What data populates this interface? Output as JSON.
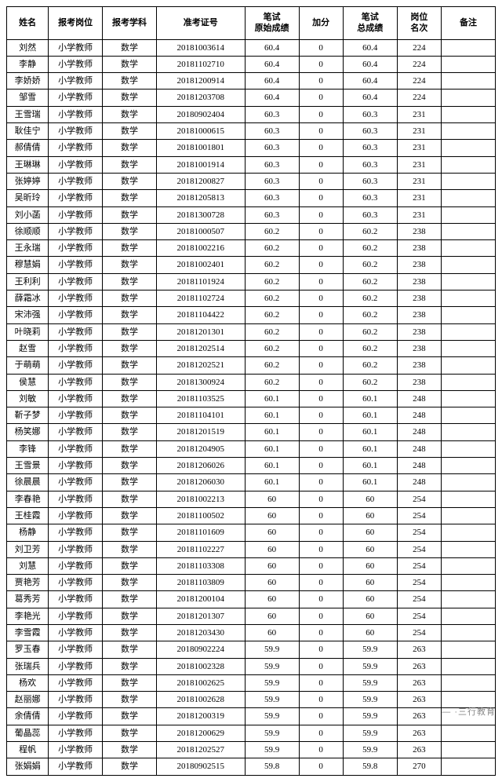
{
  "table": {
    "columns": [
      "姓名",
      "报考岗位",
      "报考学科",
      "准考证号",
      "笔试\n原始成绩",
      "加分",
      "笔试\n总成绩",
      "岗位\n名次",
      "备注"
    ],
    "col_classes": [
      "col-name",
      "col-post",
      "col-subj",
      "col-id",
      "col-score1",
      "col-bonus",
      "col-score2",
      "col-rank",
      "col-remark"
    ],
    "rows": [
      [
        "刘然",
        "小学教师",
        "数学",
        "20181003614",
        "60.4",
        "0",
        "60.4",
        "224",
        ""
      ],
      [
        "李静",
        "小学教师",
        "数学",
        "20181102710",
        "60.4",
        "0",
        "60.4",
        "224",
        ""
      ],
      [
        "李娇娇",
        "小学教师",
        "数学",
        "20181200914",
        "60.4",
        "0",
        "60.4",
        "224",
        ""
      ],
      [
        "邹雪",
        "小学教师",
        "数学",
        "20181203708",
        "60.4",
        "0",
        "60.4",
        "224",
        ""
      ],
      [
        "王雪瑞",
        "小学教师",
        "数学",
        "20180902404",
        "60.3",
        "0",
        "60.3",
        "231",
        ""
      ],
      [
        "耿佳宁",
        "小学教师",
        "数学",
        "20181000615",
        "60.3",
        "0",
        "60.3",
        "231",
        ""
      ],
      [
        "郝倩倩",
        "小学教师",
        "数学",
        "20181001801",
        "60.3",
        "0",
        "60.3",
        "231",
        ""
      ],
      [
        "王琳琳",
        "小学教师",
        "数学",
        "20181001914",
        "60.3",
        "0",
        "60.3",
        "231",
        ""
      ],
      [
        "张婷婷",
        "小学教师",
        "数学",
        "20181200827",
        "60.3",
        "0",
        "60.3",
        "231",
        ""
      ],
      [
        "吴昕玲",
        "小学教师",
        "数学",
        "20181205813",
        "60.3",
        "0",
        "60.3",
        "231",
        ""
      ],
      [
        "刘小菡",
        "小学教师",
        "数学",
        "20181300728",
        "60.3",
        "0",
        "60.3",
        "231",
        ""
      ],
      [
        "徐顺顺",
        "小学教师",
        "数学",
        "20181000507",
        "60.2",
        "0",
        "60.2",
        "238",
        ""
      ],
      [
        "王永瑞",
        "小学教师",
        "数学",
        "20181002216",
        "60.2",
        "0",
        "60.2",
        "238",
        ""
      ],
      [
        "穆慧娟",
        "小学教师",
        "数学",
        "20181002401",
        "60.2",
        "0",
        "60.2",
        "238",
        ""
      ],
      [
        "王利利",
        "小学教师",
        "数学",
        "20181101924",
        "60.2",
        "0",
        "60.2",
        "238",
        ""
      ],
      [
        "薛霜冰",
        "小学教师",
        "数学",
        "20181102724",
        "60.2",
        "0",
        "60.2",
        "238",
        ""
      ],
      [
        "宋沛强",
        "小学教师",
        "数学",
        "20181104422",
        "60.2",
        "0",
        "60.2",
        "238",
        ""
      ],
      [
        "叶晓莉",
        "小学教师",
        "数学",
        "20181201301",
        "60.2",
        "0",
        "60.2",
        "238",
        ""
      ],
      [
        "赵雪",
        "小学教师",
        "数学",
        "20181202514",
        "60.2",
        "0",
        "60.2",
        "238",
        ""
      ],
      [
        "于萌萌",
        "小学教师",
        "数学",
        "20181202521",
        "60.2",
        "0",
        "60.2",
        "238",
        ""
      ],
      [
        "侯慧",
        "小学教师",
        "数学",
        "20181300924",
        "60.2",
        "0",
        "60.2",
        "238",
        ""
      ],
      [
        "刘敏",
        "小学教师",
        "数学",
        "20181103525",
        "60.1",
        "0",
        "60.1",
        "248",
        ""
      ],
      [
        "靳子梦",
        "小学教师",
        "数学",
        "20181104101",
        "60.1",
        "0",
        "60.1",
        "248",
        ""
      ],
      [
        "杨笑娜",
        "小学教师",
        "数学",
        "20181201519",
        "60.1",
        "0",
        "60.1",
        "248",
        ""
      ],
      [
        "李锋",
        "小学教师",
        "数学",
        "20181204905",
        "60.1",
        "0",
        "60.1",
        "248",
        ""
      ],
      [
        "王雪景",
        "小学教师",
        "数学",
        "20181206026",
        "60.1",
        "0",
        "60.1",
        "248",
        ""
      ],
      [
        "徐晨晨",
        "小学教师",
        "数学",
        "20181206030",
        "60.1",
        "0",
        "60.1",
        "248",
        ""
      ],
      [
        "李春艳",
        "小学教师",
        "数学",
        "20181002213",
        "60",
        "0",
        "60",
        "254",
        ""
      ],
      [
        "王桂霞",
        "小学教师",
        "数学",
        "20181100502",
        "60",
        "0",
        "60",
        "254",
        ""
      ],
      [
        "杨静",
        "小学教师",
        "数学",
        "20181101609",
        "60",
        "0",
        "60",
        "254",
        ""
      ],
      [
        "刘卫芳",
        "小学教师",
        "数学",
        "20181102227",
        "60",
        "0",
        "60",
        "254",
        ""
      ],
      [
        "刘慧",
        "小学教师",
        "数学",
        "20181103308",
        "60",
        "0",
        "60",
        "254",
        ""
      ],
      [
        "贾艳芳",
        "小学教师",
        "数学",
        "20181103809",
        "60",
        "0",
        "60",
        "254",
        ""
      ],
      [
        "葛秀芳",
        "小学教师",
        "数学",
        "20181200104",
        "60",
        "0",
        "60",
        "254",
        ""
      ],
      [
        "李艳光",
        "小学教师",
        "数学",
        "20181201307",
        "60",
        "0",
        "60",
        "254",
        ""
      ],
      [
        "李雪霞",
        "小学教师",
        "数学",
        "20181203430",
        "60",
        "0",
        "60",
        "254",
        ""
      ],
      [
        "罗玉春",
        "小学教师",
        "数学",
        "20180902224",
        "59.9",
        "0",
        "59.9",
        "263",
        ""
      ],
      [
        "张瑞兵",
        "小学教师",
        "数学",
        "20181002328",
        "59.9",
        "0",
        "59.9",
        "263",
        ""
      ],
      [
        "杨欢",
        "小学教师",
        "数学",
        "20181002625",
        "59.9",
        "0",
        "59.9",
        "263",
        ""
      ],
      [
        "赵丽娜",
        "小学教师",
        "数学",
        "20181002628",
        "59.9",
        "0",
        "59.9",
        "263",
        ""
      ],
      [
        "余倩倩",
        "小学教师",
        "数学",
        "20181200319",
        "59.9",
        "0",
        "59.9",
        "263",
        ""
      ],
      [
        "葡晶蕊",
        "小学教师",
        "数学",
        "20181200629",
        "59.9",
        "0",
        "59.9",
        "263",
        ""
      ],
      [
        "程帆",
        "小学教师",
        "数学",
        "20181202527",
        "59.9",
        "0",
        "59.9",
        "263",
        ""
      ],
      [
        "张娟娟",
        "小学教师",
        "数学",
        "20180902515",
        "59.8",
        "0",
        "59.8",
        "270",
        ""
      ]
    ],
    "border_color": "#000000",
    "background_color": "#ffffff",
    "text_color": "#000000",
    "header_fontsize": 11,
    "cell_fontsize": 11
  },
  "watermark": "— ·三行教育"
}
